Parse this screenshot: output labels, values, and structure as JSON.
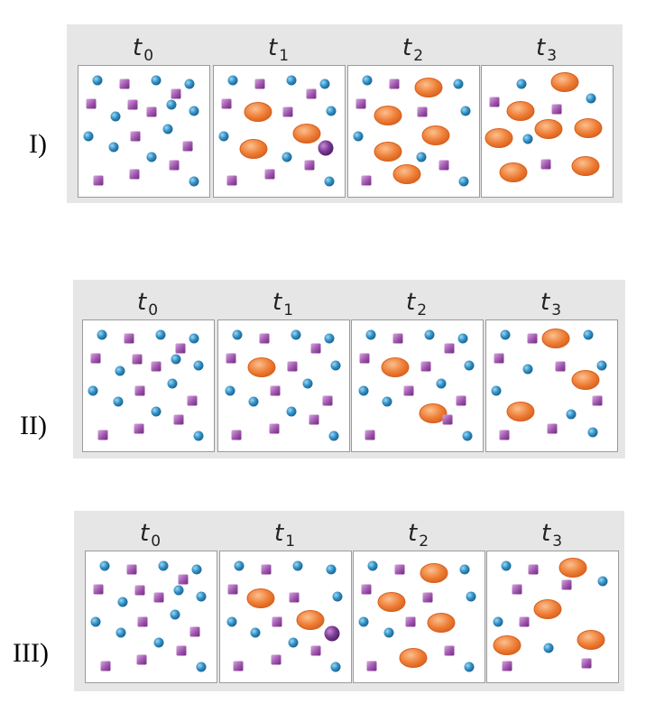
{
  "scenarios": [
    {
      "label": "I)",
      "panels": [
        {
          "time": "t",
          "sub": "0",
          "particles": [
            [
              "c",
              21,
              16
            ],
            [
              "s",
              51,
              20
            ],
            [
              "c",
              86,
              16
            ],
            [
              "c",
              123,
              20
            ],
            [
              "s",
              14,
              42
            ],
            [
              "s",
              108,
              31
            ],
            [
              "c",
              41,
              56
            ],
            [
              "s",
              60,
              43
            ],
            [
              "s",
              81,
              51
            ],
            [
              "c",
              103,
              43
            ],
            [
              "c",
              128,
              50
            ],
            [
              "c",
              11,
              78
            ],
            [
              "s",
              63,
              78
            ],
            [
              "c",
              99,
              70
            ],
            [
              "c",
              39,
              90
            ],
            [
              "s",
              121,
              89
            ],
            [
              "s",
              22,
              127
            ],
            [
              "s",
              62,
              120
            ],
            [
              "c",
              81,
              101
            ],
            [
              "s",
              106,
              110
            ],
            [
              "c",
              128,
              128
            ]
          ]
        },
        {
          "time": "t",
          "sub": "1",
          "particles": [
            [
              "c",
              21,
              16
            ],
            [
              "s",
              51,
              20
            ],
            [
              "c",
              86,
              16
            ],
            [
              "c",
              123,
              20
            ],
            [
              "s",
              14,
              42
            ],
            [
              "s",
              108,
              31
            ],
            [
              "o",
              49,
              51
            ],
            [
              "s",
              82,
              51
            ],
            [
              "c",
              130,
              50
            ],
            [
              "c",
              11,
              78
            ],
            [
              "o",
              103,
              75
            ],
            [
              "o",
              44,
              92
            ],
            [
              "c",
              81,
              101
            ],
            [
              "m",
              124,
              91
            ],
            [
              "s",
              20,
              127
            ],
            [
              "s",
              62,
              120
            ],
            [
              "s",
              106,
              110
            ],
            [
              "c",
              128,
              128
            ]
          ]
        },
        {
          "time": "t",
          "sub": "2",
          "particles": [
            [
              "c",
              21,
              16
            ],
            [
              "s",
              51,
              20
            ],
            [
              "o",
              89,
              24
            ],
            [
              "c",
              122,
              20
            ],
            [
              "s",
              14,
              42
            ],
            [
              "o",
              44,
              55
            ],
            [
              "s",
              82,
              51
            ],
            [
              "c",
              130,
              50
            ],
            [
              "c",
              11,
              78
            ],
            [
              "o",
              97,
              77
            ],
            [
              "o",
              44,
              95
            ],
            [
              "c",
              81,
              101
            ],
            [
              "o",
              65,
              120
            ],
            [
              "s",
              106,
              110
            ],
            [
              "s",
              20,
              127
            ],
            [
              "c",
              128,
              128
            ]
          ]
        },
        {
          "time": "t",
          "sub": "3",
          "particles": [
            [
              "c",
              44,
              20
            ],
            [
              "o",
              92,
              18
            ],
            [
              "c",
              121,
              36
            ],
            [
              "s",
              14,
              40
            ],
            [
              "o",
              43,
              50
            ],
            [
              "s",
              83,
              48
            ],
            [
              "c",
              51,
              81
            ],
            [
              "o",
              74,
              70
            ],
            [
              "o",
              19,
              80
            ],
            [
              "o",
              118,
              69
            ],
            [
              "s",
              71,
              109
            ],
            [
              "o",
              35,
              118
            ],
            [
              "o",
              115,
              111
            ]
          ]
        }
      ]
    },
    {
      "label": "II)",
      "panels": [
        {
          "time": "t",
          "sub": "0",
          "particles": [
            [
              "c",
              21,
              16
            ],
            [
              "s",
              51,
              20
            ],
            [
              "c",
              86,
              16
            ],
            [
              "c",
              123,
              20
            ],
            [
              "s",
              14,
              42
            ],
            [
              "s",
              108,
              31
            ],
            [
              "c",
              41,
              56
            ],
            [
              "s",
              60,
              43
            ],
            [
              "s",
              81,
              51
            ],
            [
              "c",
              103,
              43
            ],
            [
              "c",
              128,
              50
            ],
            [
              "c",
              11,
              78
            ],
            [
              "s",
              63,
              78
            ],
            [
              "c",
              99,
              70
            ],
            [
              "c",
              39,
              90
            ],
            [
              "s",
              121,
              89
            ],
            [
              "s",
              22,
              127
            ],
            [
              "s",
              62,
              120
            ],
            [
              "c",
              81,
              101
            ],
            [
              "s",
              106,
              110
            ],
            [
              "c",
              128,
              128
            ]
          ]
        },
        {
          "time": "t",
          "sub": "1",
          "particles": [
            [
              "c",
              21,
              16
            ],
            [
              "s",
              51,
              20
            ],
            [
              "c",
              86,
              16
            ],
            [
              "c",
              123,
              20
            ],
            [
              "s",
              14,
              42
            ],
            [
              "s",
              108,
              31
            ],
            [
              "o",
              48,
              52
            ],
            [
              "s",
              82,
              51
            ],
            [
              "c",
              130,
              50
            ],
            [
              "c",
              13,
              78
            ],
            [
              "s",
              63,
              78
            ],
            [
              "c",
              99,
              70
            ],
            [
              "c",
              39,
              90
            ],
            [
              "s",
              121,
              89
            ],
            [
              "s",
              20,
              127
            ],
            [
              "s",
              62,
              120
            ],
            [
              "c",
              81,
              101
            ],
            [
              "s",
              106,
              110
            ],
            [
              "c",
              128,
              128
            ]
          ]
        },
        {
          "time": "t",
          "sub": "2",
          "particles": [
            [
              "c",
              21,
              16
            ],
            [
              "s",
              51,
              20
            ],
            [
              "c",
              86,
              16
            ],
            [
              "c",
              123,
              20
            ],
            [
              "s",
              14,
              42
            ],
            [
              "s",
              108,
              31
            ],
            [
              "o",
              48,
              52
            ],
            [
              "s",
              82,
              51
            ],
            [
              "c",
              130,
              50
            ],
            [
              "c",
              13,
              78
            ],
            [
              "s",
              63,
              78
            ],
            [
              "c",
              99,
              70
            ],
            [
              "c",
              39,
              90
            ],
            [
              "o",
              90,
              103
            ],
            [
              "s",
              121,
              89
            ],
            [
              "s",
              20,
              127
            ],
            [
              "s",
              106,
              110
            ],
            [
              "c",
              128,
              128
            ]
          ]
        },
        {
          "time": "t",
          "sub": "3",
          "particles": [
            [
              "c",
              21,
              16
            ],
            [
              "s",
              51,
              20
            ],
            [
              "o",
              77,
              20
            ],
            [
              "c",
              113,
              16
            ],
            [
              "s",
              14,
              42
            ],
            [
              "c",
              46,
              54
            ],
            [
              "s",
              82,
              51
            ],
            [
              "c",
              128,
              50
            ],
            [
              "c",
              11,
              78
            ],
            [
              "o",
              110,
              66
            ],
            [
              "s",
              123,
              89
            ],
            [
              "o",
              38,
              101
            ],
            [
              "c",
              94,
              104
            ],
            [
              "s",
              20,
              127
            ],
            [
              "s",
              73,
              120
            ],
            [
              "c",
              118,
              124
            ]
          ]
        }
      ]
    },
    {
      "label": "III)",
      "panels": [
        {
          "time": "t",
          "sub": "0",
          "particles": [
            [
              "c",
              21,
              16
            ],
            [
              "s",
              51,
              20
            ],
            [
              "c",
              86,
              16
            ],
            [
              "c",
              123,
              20
            ],
            [
              "s",
              14,
              42
            ],
            [
              "s",
              108,
              31
            ],
            [
              "c",
              41,
              56
            ],
            [
              "s",
              60,
              43
            ],
            [
              "s",
              81,
              51
            ],
            [
              "c",
              103,
              43
            ],
            [
              "c",
              128,
              50
            ],
            [
              "c",
              11,
              78
            ],
            [
              "s",
              63,
              78
            ],
            [
              "c",
              99,
              70
            ],
            [
              "c",
              39,
              90
            ],
            [
              "s",
              121,
              89
            ],
            [
              "s",
              22,
              127
            ],
            [
              "s",
              62,
              120
            ],
            [
              "c",
              81,
              101
            ],
            [
              "s",
              106,
              110
            ],
            [
              "c",
              128,
              128
            ]
          ]
        },
        {
          "time": "t",
          "sub": "1",
          "particles": [
            [
              "c",
              21,
              16
            ],
            [
              "s",
              51,
              20
            ],
            [
              "c",
              86,
              16
            ],
            [
              "c",
              123,
              20
            ],
            [
              "s",
              14,
              42
            ],
            [
              "o",
              45,
              52
            ],
            [
              "s",
              82,
              51
            ],
            [
              "c",
              130,
              50
            ],
            [
              "c",
              13,
              78
            ],
            [
              "s",
              63,
              78
            ],
            [
              "o",
              100,
              76
            ],
            [
              "c",
              39,
              90
            ],
            [
              "m",
              124,
              91
            ],
            [
              "s",
              20,
              127
            ],
            [
              "s",
              62,
              120
            ],
            [
              "c",
              81,
              101
            ],
            [
              "s",
              106,
              110
            ],
            [
              "c",
              128,
              128
            ]
          ]
        },
        {
          "time": "t",
          "sub": "2",
          "particles": [
            [
              "c",
              21,
              16
            ],
            [
              "s",
              51,
              20
            ],
            [
              "o",
              89,
              24
            ],
            [
              "c",
              123,
              20
            ],
            [
              "s",
              14,
              42
            ],
            [
              "o",
              42,
              56
            ],
            [
              "s",
              82,
              51
            ],
            [
              "c",
              130,
              50
            ],
            [
              "c",
              11,
              78
            ],
            [
              "s",
              63,
              78
            ],
            [
              "o",
              97,
              79
            ],
            [
              "c",
              39,
              90
            ],
            [
              "o",
              66,
              118
            ],
            [
              "s",
              20,
              127
            ],
            [
              "s",
              106,
              110
            ],
            [
              "c",
              128,
              128
            ]
          ]
        },
        {
          "time": "t",
          "sub": "3",
          "particles": [
            [
              "c",
              21,
              16
            ],
            [
              "s",
              51,
              20
            ],
            [
              "o",
              95,
              18
            ],
            [
              "c",
              128,
              33
            ],
            [
              "s",
              33,
              42
            ],
            [
              "s",
              88,
              37
            ],
            [
              "o",
              67,
              64
            ],
            [
              "c",
              12,
              78
            ],
            [
              "s",
              41,
              78
            ],
            [
              "o",
              115,
              98
            ],
            [
              "o",
              22,
              104
            ],
            [
              "c",
              68,
              107
            ],
            [
              "s",
              22,
              127
            ],
            [
              "s",
              110,
              124
            ]
          ]
        }
      ]
    }
  ],
  "colors": {
    "strip": "#e6e6e6",
    "circle": "#2f8fc4",
    "square": "#9a4ea8",
    "oval": "#ee7d35",
    "merged": "#7a3b93"
  }
}
